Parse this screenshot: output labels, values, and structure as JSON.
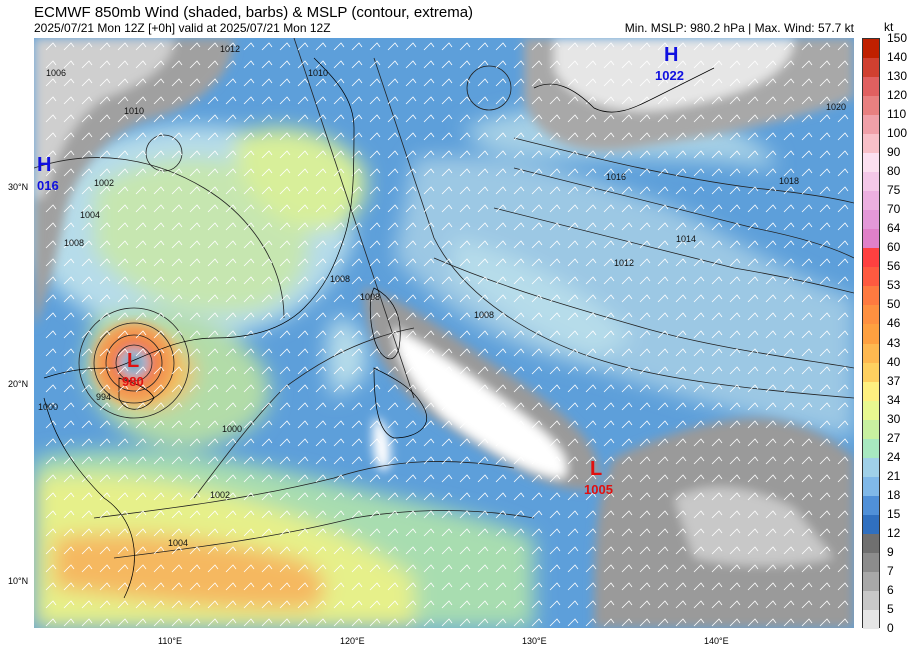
{
  "title": "ECMWF 850mb Wind (shaded, barbs) & MSLP (contour, extrema)",
  "subtitle": "2025/07/21 Mon 12Z [+0h] valid at 2025/07/21 Mon 12Z",
  "stats": "Min. MSLP: 980.2 hPa | Max. Wind: 57.7 kt",
  "colorbar": {
    "unit": "kt",
    "levels": [
      "150",
      "140",
      "130",
      "120",
      "110",
      "100",
      "90",
      "80",
      "75",
      "70",
      "64",
      "60",
      "56",
      "53",
      "50",
      "46",
      "43",
      "40",
      "37",
      "34",
      "30",
      "27",
      "24",
      "21",
      "18",
      "15",
      "12",
      "9",
      "7",
      "6",
      "5",
      "0"
    ],
    "colors": [
      "#c02000",
      "#d04030",
      "#e06060",
      "#e88080",
      "#f0a0a8",
      "#f8c0c8",
      "#fce0f0",
      "#f4c8e8",
      "#ecb0e0",
      "#e498d8",
      "#e080c8",
      "#ff4040",
      "#ff5a40",
      "#ff7a40",
      "#ff9040",
      "#ffa040",
      "#ffb850",
      "#ffd060",
      "#fff080",
      "#e8f890",
      "#c8f0a0",
      "#a8e8c0",
      "#a0d0e8",
      "#80b8e8",
      "#5090d8",
      "#3070c0",
      "#707070",
      "#8c8c8c",
      "#a8a8a8",
      "#c8c8c8",
      "#e6e6e6",
      "#ffffff"
    ]
  },
  "lat_labels": [
    "30°N",
    "20°N",
    "10°N"
  ],
  "lon_labels": [
    "110°E",
    "120°E",
    "130°E",
    "140°E"
  ],
  "systems": [
    {
      "type": "H",
      "value": "1022",
      "color": "#1010e0"
    },
    {
      "type": "H",
      "value": "016",
      "color": "#1010e0"
    },
    {
      "type": "L",
      "value": "980",
      "color": "#e01010"
    },
    {
      "type": "L",
      "value": "1005",
      "color": "#e01010"
    }
  ],
  "isobar_labels": [
    "1006",
    "1012",
    "1010",
    "1010",
    "1004",
    "1002",
    "1008",
    "1016",
    "1018",
    "1020",
    "1014",
    "1012",
    "1008",
    "1008",
    "1008",
    "1000",
    "1002",
    "1004",
    "994",
    "1000"
  ]
}
